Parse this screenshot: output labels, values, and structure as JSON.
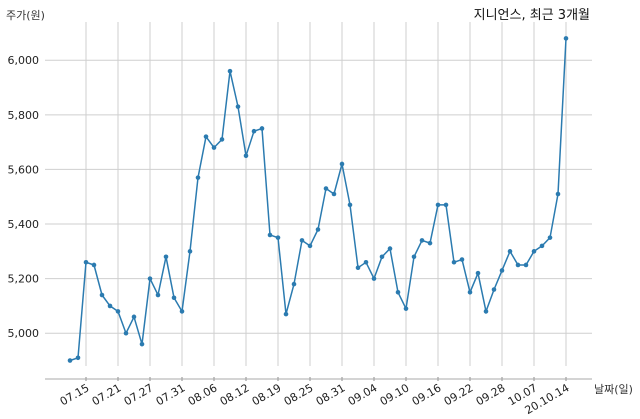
{
  "chart_data": {
    "type": "line",
    "title": "지니언스, 최근 3개월",
    "xlabel": "날짜(일)",
    "ylabel": "주가(원)",
    "ylim": [
      4880,
      6140
    ],
    "yticks": [
      5000,
      5200,
      5400,
      5600,
      5800,
      6000
    ],
    "ytick_labels": [
      "5,000",
      "5,200",
      "5,400",
      "5,600",
      "5,800",
      "6,000"
    ],
    "xtick_labels": [
      "07.15",
      "07.21",
      "07.27",
      "07.31",
      "08.06",
      "08.12",
      "08.19",
      "08.25",
      "08.31",
      "09.04",
      "09.10",
      "09.16",
      "09.22",
      "09.28",
      "10.07",
      "20.10.14"
    ],
    "xtick_index": [
      2,
      6,
      10,
      14,
      18,
      22,
      26,
      30,
      34,
      38,
      42,
      46,
      50,
      54,
      58,
      62
    ],
    "grid": true,
    "legend": "none",
    "line_color": "#2b7bb0",
    "series": [
      {
        "values": [
          4900,
          4910,
          5260,
          5250,
          5140,
          5100,
          5080,
          5000,
          5060,
          4960,
          5200,
          5140,
          5280,
          5130,
          5080,
          5300,
          5570,
          5720,
          5680,
          5710,
          5960,
          5830,
          5650,
          5740,
          5750,
          5360,
          5350,
          5070,
          5180,
          5340,
          5320,
          5380,
          5530,
          5510,
          5620,
          5470,
          5240,
          5260,
          5200,
          5280,
          5310,
          5150,
          5090,
          5280,
          5340,
          5330,
          5470,
          5470,
          5260,
          5270,
          5150,
          5220,
          5080,
          5160,
          5230,
          5300,
          5250,
          5250,
          5300,
          5320,
          5350,
          5510,
          6080
        ]
      }
    ]
  }
}
